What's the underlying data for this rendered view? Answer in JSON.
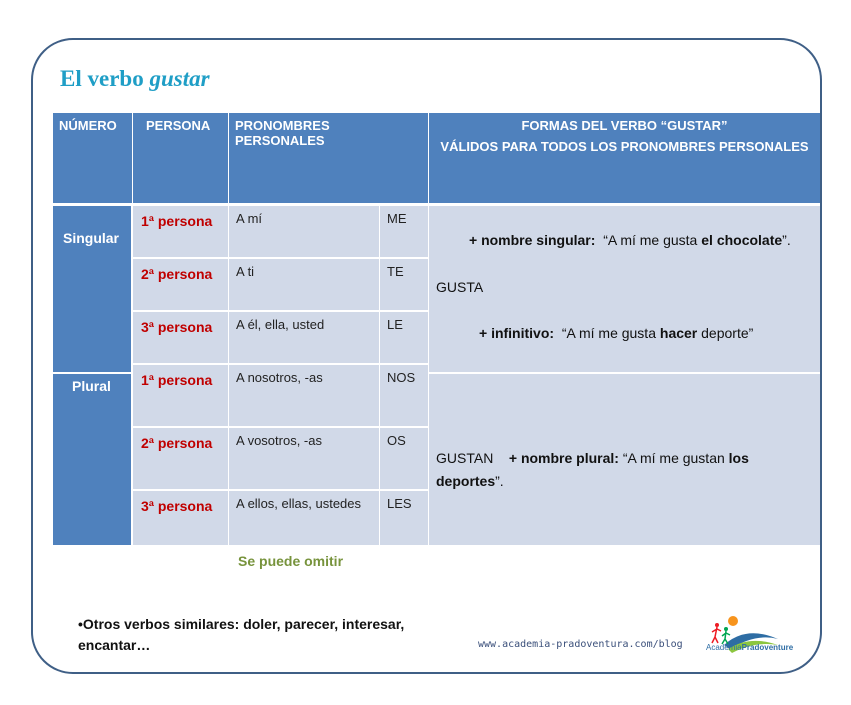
{
  "title": {
    "main": "El verbo ",
    "italic": "gustar"
  },
  "headers": {
    "numero": "NÚMERO",
    "persona": "PERSONA",
    "pronombres": "PRONOMBRES PERSONALES",
    "formas_line1": "FORMAS DEL VERBO “GUSTAR”",
    "formas_line2": "VÁLIDOS PARA TODOS LOS PRONOMBRES PERSONALES"
  },
  "numbers": {
    "singular": "Singular",
    "plural": "Plural"
  },
  "rows": [
    {
      "persona": "1ª persona",
      "pronombre": "A mí",
      "forma": "ME"
    },
    {
      "persona": "2ª persona",
      "pronombre": "A ti",
      "forma": "TE"
    },
    {
      "persona": "3ª persona",
      "pronombre": "A él, ella, usted",
      "forma": "LE"
    },
    {
      "persona": "1ª persona",
      "pronombre": "A nosotros, -as",
      "forma": "NOS"
    },
    {
      "persona": "2ª persona",
      "pronombre": "A vosotros, -as",
      "forma": "OS"
    },
    {
      "persona": "3ª persona",
      "pronombre": "A ellos, ellas, ustedes",
      "forma": "LES"
    }
  ],
  "singular_block": {
    "line1_bold": "+ nombre singular:",
    "line1_text": "  “A mí me gusta ",
    "line1_bold2": "el chocolate",
    "line1_end": "”.",
    "gusta": "GUSTA",
    "line2_bold": "+ infinitivo:",
    "line2_text": "  “A mí me gusta ",
    "line2_bold2": "hacer",
    "line2_end": " deporte”"
  },
  "plural_block": {
    "gustan": "GUSTAN",
    "bold1": "+ nombre plural:",
    "text1": " “A mí me gustan ",
    "bold2": "los",
    "bold3": "deportes",
    "end": "”."
  },
  "omit_note": "Se puede omitir",
  "others": "•Otros verbos similares: doler, parecer, interesar, encantar…",
  "url": "www.academia-pradoventura.com/blog",
  "logo": {
    "text1": "Academia",
    "text2": "Pradoventure"
  },
  "colors": {
    "header": "#4f81bd",
    "cell": "#d1d9e8",
    "title": "#1f9ec6",
    "persona": "#c00000",
    "note": "#77933c"
  }
}
